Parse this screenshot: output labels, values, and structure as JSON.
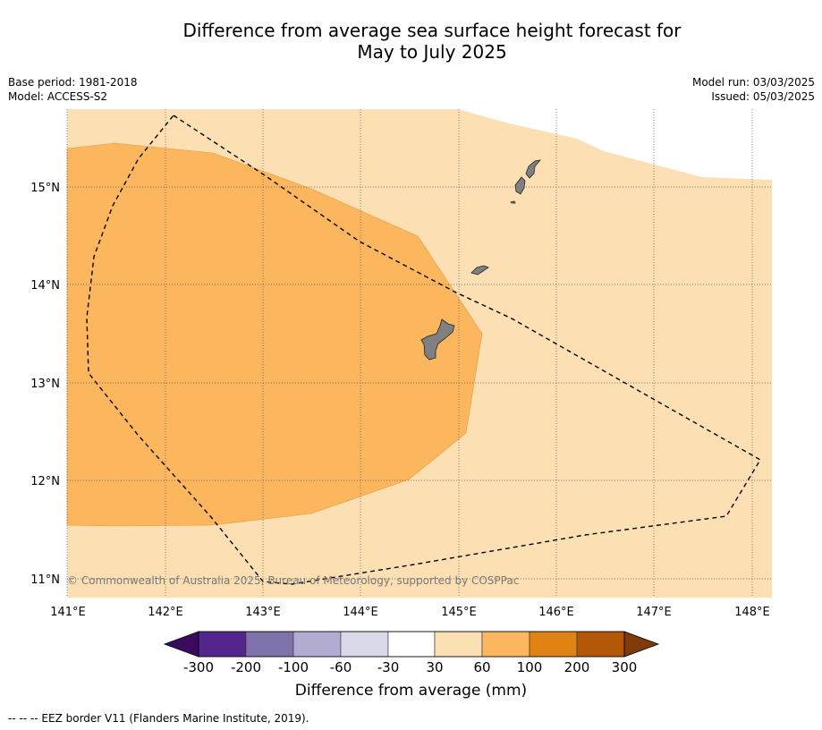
{
  "title_line1": "Difference from average sea surface height forecast for",
  "title_line2": "May to July 2025",
  "meta_left": [
    "Base period: 1981-2018",
    "Model: ACCESS-S2"
  ],
  "meta_right": [
    "Model run: 03/03/2025",
    "Issued: 05/03/2025"
  ],
  "lon_labels": [
    "141°E",
    "142°E",
    "143°E",
    "144°E",
    "145°E",
    "146°E",
    "147°E",
    "148°E"
  ],
  "lat_labels": [
    "15°N",
    "14°N",
    "13°N",
    "12°N",
    "11°N"
  ],
  "copyright": "© Commonwealth of Australia 2025, Bureau of Meteorology, supported by COSPPac",
  "colorbar": {
    "title": "Difference from average (mm)",
    "tick_labels": [
      "-300",
      "-200",
      "-100",
      "-60",
      "-30",
      "30",
      "60",
      "100",
      "200",
      "300"
    ],
    "colors": [
      "#3b0a5c",
      "#54278f",
      "#8073ac",
      "#b2abd2",
      "#d8daeb",
      "#ffffff",
      "#fddfb4",
      "#fbb65e",
      "#e08214",
      "#b35806",
      "#7f3b08"
    ]
  },
  "footnote": "--  --  -- EEZ border V11 (Flanders Marine Institute, 2019)."
}
